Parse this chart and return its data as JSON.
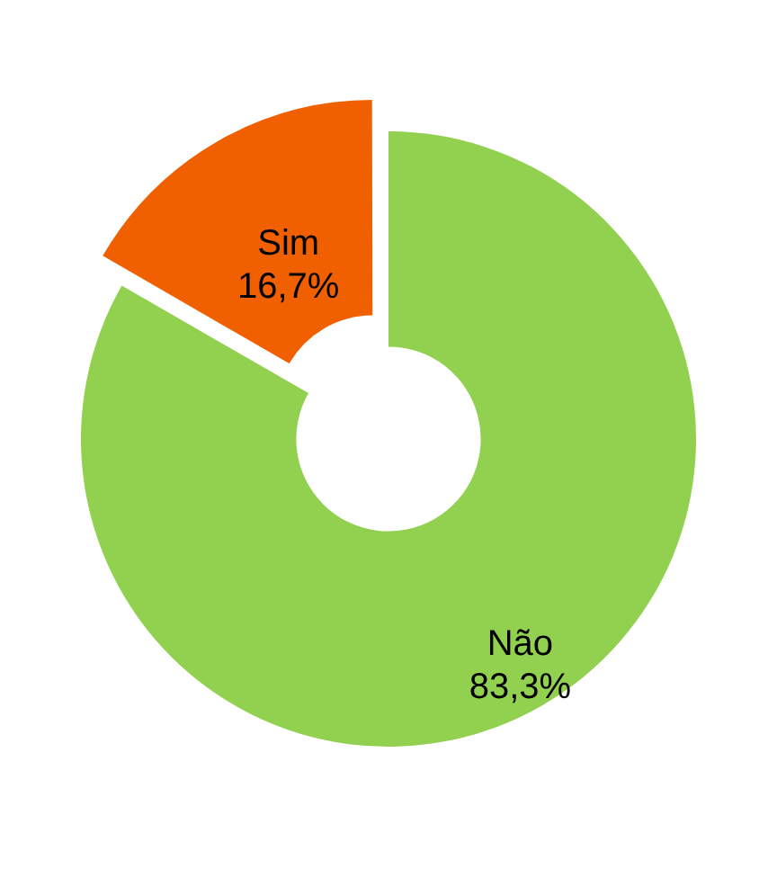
{
  "chart_data": {
    "type": "donut",
    "categories": [
      "Não",
      "Sim"
    ],
    "values": [
      83.3,
      16.7
    ],
    "colors": [
      "#92d050",
      "#f06000"
    ],
    "value_labels": [
      "83,3%",
      "16,7%"
    ],
    "legend": false
  }
}
